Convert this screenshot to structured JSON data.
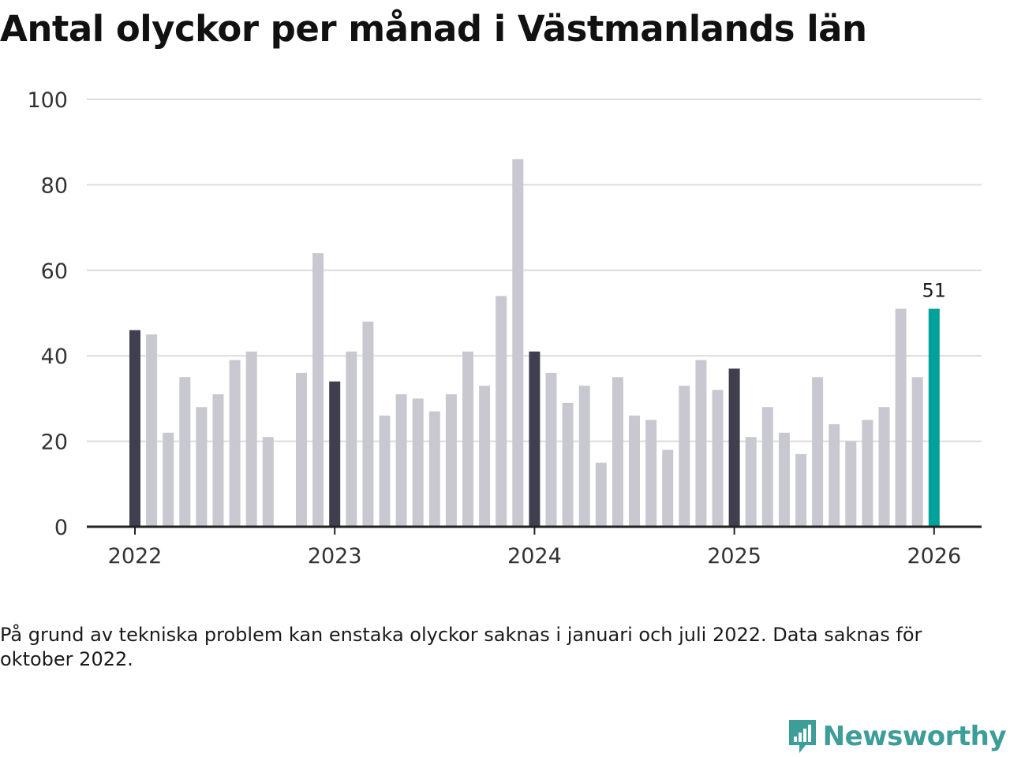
{
  "title": "Antal olyckor per månad i Västmanlands län",
  "note": "På grund av tekniska problem kan enstaka olyckor saknas i januari och juli 2022. Data saknas för oktober 2022.",
  "brand": {
    "name": "Newsworthy",
    "icon": "newsworthy-chart-logo-icon"
  },
  "colors": {
    "default_bar": "#c8c8d0",
    "january_bar": "#3f3f4f",
    "latest_bar": "#00a19a",
    "gridline": "#dcdcdc",
    "axis": "#222222"
  },
  "chart_data": {
    "type": "bar",
    "title": "Antal olyckor per månad i Västmanlands län",
    "xlabel": "",
    "ylabel": "",
    "ylim": [
      0,
      100
    ],
    "yticks": [
      0,
      20,
      40,
      60,
      80,
      100
    ],
    "grid": true,
    "x_tick_labels": [
      {
        "label": "2022",
        "month_index": 0
      },
      {
        "label": "2023",
        "month_index": 12
      },
      {
        "label": "2024",
        "month_index": 24
      },
      {
        "label": "2025",
        "month_index": 36
      },
      {
        "label": "2026",
        "month_index": 48
      }
    ],
    "start": "2022-01",
    "values": [
      46,
      45,
      22,
      35,
      28,
      31,
      39,
      41,
      21,
      null,
      36,
      64,
      34,
      41,
      48,
      26,
      31,
      30,
      27,
      31,
      41,
      33,
      54,
      86,
      41,
      36,
      29,
      33,
      15,
      35,
      26,
      25,
      18,
      33,
      39,
      32,
      37,
      21,
      28,
      22,
      17,
      35,
      24,
      20,
      25,
      28,
      51,
      35,
      51
    ],
    "highlight": {
      "month_index": 48,
      "label": "51"
    }
  }
}
